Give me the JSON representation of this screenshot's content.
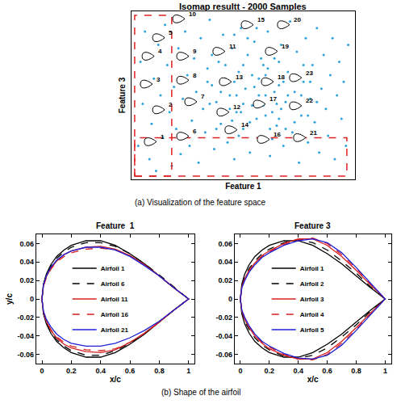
{
  "chart_data": [
    {
      "type": "scatter",
      "title": "Isomap resultt - 2000 Samples",
      "x_label": "Feature 1",
      "y_label": "Feature 3",
      "caption": "(a) Visualization of the feature space",
      "xlim": [
        0,
        100
      ],
      "ylim": [
        0,
        100
      ],
      "tick_labels": false,
      "grid": false,
      "series": [
        {
          "color": "#2aa3dc",
          "marker": "circle",
          "x": [
            3,
            5,
            4,
            6,
            8,
            9,
            10,
            12,
            11,
            13,
            14,
            15,
            16,
            17,
            18,
            19,
            20,
            21,
            22,
            23,
            24,
            25,
            26,
            27,
            28,
            29,
            30,
            31,
            32,
            33,
            34,
            35,
            36,
            37,
            38,
            39,
            40,
            41,
            42,
            43,
            44,
            45,
            46,
            47,
            48,
            49,
            50,
            51,
            52,
            53,
            54,
            55,
            56,
            57,
            58,
            59,
            60,
            61,
            62,
            63,
            64,
            65,
            66,
            67,
            68,
            69,
            70,
            71,
            72,
            73,
            74,
            75,
            76,
            77,
            78,
            79,
            80,
            81,
            82,
            83,
            84,
            85,
            86,
            87,
            88,
            89,
            90,
            91,
            92,
            93,
            94,
            95,
            96,
            97,
            35,
            45,
            55,
            65,
            50,
            60,
            40,
            48,
            58,
            68,
            42,
            52,
            62,
            72,
            46,
            56,
            66,
            76,
            38,
            44,
            54,
            64,
            74,
            34,
            50,
            60,
            70,
            80,
            36,
            46,
            56,
            66,
            53,
            63,
            73,
            83,
            57,
            67,
            47,
            77,
            43,
            49,
            59,
            69,
            79,
            61
          ],
          "values": [
            20,
            45,
            70,
            88,
            12,
            33,
            60,
            80,
            5,
            50,
            25,
            92,
            68,
            40,
            8,
            55,
            30,
            78,
            15,
            48,
            88,
            62,
            20,
            35,
            72,
            52,
            10,
            84,
            42,
            28,
            66,
            95,
            56,
            18,
            46,
            70,
            33,
            86,
            60,
            22,
            50,
            78,
            12,
            40,
            64,
            90,
            30,
            54,
            74,
            16,
            44,
            82,
            36,
            60,
            24,
            68,
            50,
            88,
            14,
            40,
            72,
            32,
            56,
            80,
            20,
            46,
            64,
            94,
            28,
            52,
            76,
            10,
            38,
            58,
            84,
            22,
            48,
            68,
            34,
            90,
            16,
            54,
            74,
            42,
            26,
            62,
            84,
            12,
            50,
            70,
            36,
            58,
            20,
            80,
            45,
            35,
            55,
            45,
            45,
            38,
            52,
            26,
            72,
            58,
            68,
            84,
            30,
            42,
            58,
            46,
            36,
            50,
            30,
            42,
            62,
            52,
            62,
            58,
            68,
            62,
            50,
            58,
            74,
            86,
            90,
            70,
            34,
            24,
            34,
            46,
            50,
            42,
            50,
            68,
            58,
            40,
            44,
            30,
            38,
            66
          ]
        }
      ],
      "annotations": [
        {
          "text": "1",
          "x": 7.9,
          "y": 22.4
        },
        {
          "text": "2",
          "x": 11.6,
          "y": 41.4
        },
        {
          "text": "3",
          "x": 6.1,
          "y": 56.7
        },
        {
          "text": "4",
          "x": 6.9,
          "y": 73.3
        },
        {
          "text": "5",
          "x": 11.6,
          "y": 84.3
        },
        {
          "text": "6",
          "x": 22.4,
          "y": 25.7
        },
        {
          "text": "7",
          "x": 26.0,
          "y": 46.2
        },
        {
          "text": "8",
          "x": 22.4,
          "y": 59.0
        },
        {
          "text": "9",
          "x": 22.4,
          "y": 73.3
        },
        {
          "text": "10",
          "x": 20.6,
          "y": 95.5
        },
        {
          "text": "11",
          "x": 38.6,
          "y": 76.2
        },
        {
          "text": "12",
          "x": 40.4,
          "y": 40.0
        },
        {
          "text": "13",
          "x": 41.5,
          "y": 58.1
        },
        {
          "text": "14",
          "x": 44.0,
          "y": 29.5
        },
        {
          "text": "15",
          "x": 51.3,
          "y": 92.0
        },
        {
          "text": "16",
          "x": 58.5,
          "y": 23.8
        },
        {
          "text": "17",
          "x": 56.7,
          "y": 44.8
        },
        {
          "text": "18",
          "x": 60.3,
          "y": 58.1
        },
        {
          "text": "19",
          "x": 62.1,
          "y": 76.2
        },
        {
          "text": "20",
          "x": 67.5,
          "y": 92.0
        },
        {
          "text": "21",
          "x": 74.7,
          "y": 24.8
        },
        {
          "text": "22",
          "x": 72.9,
          "y": 43.8
        },
        {
          "text": "23",
          "x": 72.9,
          "y": 60.5
        }
      ],
      "regions": [
        {
          "x": [
            1.4,
            18
          ],
          "y": [
            1.9,
            97.6
          ],
          "color": "#e02020",
          "line_style": "dash"
        },
        {
          "x": [
            1.4,
            96.4
          ],
          "y": [
            1.9,
            24.8
          ],
          "color": "#e02020",
          "line_style": "dash"
        }
      ]
    },
    {
      "type": "line",
      "title": "Feature  1",
      "x_label": "x/c",
      "y_label": "y/c",
      "caption": "(b) Shape of the airfoil",
      "xlim": [
        -0.04,
        1.04
      ],
      "ylim": [
        -0.07,
        0.07
      ],
      "xticks": [
        0,
        0.2,
        0.4,
        0.6,
        0.8,
        1
      ],
      "yticks": [
        -0.06,
        -0.04,
        -0.02,
        0,
        0.02,
        0.04,
        0.06
      ],
      "grid": false,
      "legend": "center",
      "x": [
        0,
        0.01,
        0.03,
        0.06,
        0.1,
        0.15,
        0.2,
        0.3,
        0.4,
        0.5,
        0.6,
        0.7,
        0.8,
        0.9,
        1
      ],
      "series": [
        {
          "name": "Airfoil 1",
          "color": "#000000",
          "line_style": "solid",
          "upper": [
            0,
            0.016,
            0.027,
            0.037,
            0.046,
            0.053,
            0.058,
            0.063,
            0.063,
            0.058,
            0.049,
            0.038,
            0.025,
            0.012,
            0
          ],
          "lower": [
            0,
            -0.016,
            -0.027,
            -0.037,
            -0.046,
            -0.053,
            -0.058,
            -0.063,
            -0.063,
            -0.058,
            -0.049,
            -0.038,
            -0.025,
            -0.012,
            0
          ]
        },
        {
          "name": "Airfoil 6",
          "color": "#000000",
          "line_style": "dash",
          "upper": [
            0,
            0.015,
            0.026,
            0.035,
            0.044,
            0.051,
            0.056,
            0.061,
            0.061,
            0.057,
            0.049,
            0.038,
            0.026,
            0.013,
            0
          ],
          "lower": [
            0,
            -0.015,
            -0.026,
            -0.035,
            -0.044,
            -0.051,
            -0.056,
            -0.061,
            -0.061,
            -0.056,
            -0.048,
            -0.037,
            -0.025,
            -0.012,
            0
          ]
        },
        {
          "name": "Airfoil 11",
          "color": "#d62020",
          "line_style": "solid",
          "upper": [
            0,
            0.014,
            0.024,
            0.033,
            0.041,
            0.048,
            0.052,
            0.056,
            0.057,
            0.054,
            0.047,
            0.037,
            0.025,
            0.012,
            0
          ],
          "lower": [
            0,
            -0.014,
            -0.024,
            -0.034,
            -0.042,
            -0.049,
            -0.053,
            -0.057,
            -0.058,
            -0.055,
            -0.047,
            -0.037,
            -0.025,
            -0.012,
            0
          ]
        },
        {
          "name": "Airfoil 16",
          "color": "#d62020",
          "line_style": "dash",
          "upper": [
            0,
            0.014,
            0.023,
            0.032,
            0.04,
            0.046,
            0.05,
            0.054,
            0.055,
            0.053,
            0.047,
            0.037,
            0.025,
            0.012,
            0
          ],
          "lower": [
            0,
            -0.014,
            -0.024,
            -0.033,
            -0.041,
            -0.047,
            -0.051,
            -0.055,
            -0.056,
            -0.054,
            -0.047,
            -0.037,
            -0.025,
            -0.012,
            0
          ]
        },
        {
          "name": "Airfoil 21",
          "color": "#2020d6",
          "line_style": "solid",
          "upper": [
            0,
            0.015,
            0.025,
            0.034,
            0.042,
            0.048,
            0.052,
            0.056,
            0.056,
            0.053,
            0.046,
            0.036,
            0.025,
            0.012,
            0
          ],
          "lower": [
            0,
            -0.013,
            -0.022,
            -0.03,
            -0.038,
            -0.044,
            -0.048,
            -0.051,
            -0.051,
            -0.048,
            -0.042,
            -0.034,
            -0.024,
            -0.012,
            0
          ]
        }
      ]
    },
    {
      "type": "line",
      "title": "Feature 3",
      "x_label": "x/c",
      "xlim": [
        -0.04,
        1.04
      ],
      "ylim": [
        -0.07,
        0.07
      ],
      "xticks": [
        0,
        0.2,
        0.4,
        0.6,
        0.8,
        1
      ],
      "yticks": [
        -0.06,
        -0.04,
        -0.02,
        0,
        0.02,
        0.04,
        0.06
      ],
      "grid": false,
      "legend": "center",
      "x": [
        0,
        0.01,
        0.03,
        0.06,
        0.1,
        0.15,
        0.2,
        0.3,
        0.4,
        0.5,
        0.6,
        0.7,
        0.8,
        0.9,
        1
      ],
      "series": [
        {
          "name": "Airfoil 1",
          "color": "#000000",
          "line_style": "solid",
          "upper": [
            0,
            0.016,
            0.027,
            0.037,
            0.046,
            0.053,
            0.058,
            0.063,
            0.063,
            0.058,
            0.049,
            0.038,
            0.025,
            0.012,
            0
          ],
          "lower": [
            0,
            -0.016,
            -0.027,
            -0.037,
            -0.046,
            -0.053,
            -0.058,
            -0.063,
            -0.063,
            -0.058,
            -0.049,
            -0.038,
            -0.025,
            -0.012,
            0
          ]
        },
        {
          "name": "Airfoil 2",
          "color": "#000000",
          "line_style": "dash",
          "upper": [
            0,
            0.014,
            0.024,
            0.033,
            0.041,
            0.049,
            0.054,
            0.061,
            0.064,
            0.061,
            0.053,
            0.041,
            0.028,
            0.013,
            0
          ],
          "lower": [
            0,
            -0.014,
            -0.024,
            -0.033,
            -0.042,
            -0.05,
            -0.055,
            -0.062,
            -0.064,
            -0.061,
            -0.053,
            -0.041,
            -0.028,
            -0.013,
            0
          ]
        },
        {
          "name": "Airfoil 3",
          "color": "#d62020",
          "line_style": "solid",
          "upper": [
            0,
            0.013,
            0.022,
            0.031,
            0.039,
            0.047,
            0.052,
            0.06,
            0.065,
            0.065,
            0.058,
            0.046,
            0.031,
            0.015,
            0
          ],
          "lower": [
            0,
            -0.013,
            -0.022,
            -0.031,
            -0.04,
            -0.048,
            -0.054,
            -0.061,
            -0.065,
            -0.065,
            -0.058,
            -0.046,
            -0.031,
            -0.015,
            0
          ]
        },
        {
          "name": "Airfoil 4",
          "color": "#d62020",
          "line_style": "dash",
          "upper": [
            0,
            0.012,
            0.021,
            0.03,
            0.038,
            0.046,
            0.051,
            0.059,
            0.064,
            0.066,
            0.06,
            0.048,
            0.033,
            0.016,
            0
          ],
          "lower": [
            0,
            -0.012,
            -0.021,
            -0.03,
            -0.039,
            -0.047,
            -0.052,
            -0.06,
            -0.065,
            -0.066,
            -0.06,
            -0.048,
            -0.033,
            -0.016,
            0
          ]
        },
        {
          "name": "Airfoil 5",
          "color": "#2020d6",
          "line_style": "solid",
          "upper": [
            0,
            0.012,
            0.02,
            0.029,
            0.037,
            0.045,
            0.05,
            0.058,
            0.063,
            0.065,
            0.061,
            0.05,
            0.034,
            0.017,
            0
          ],
          "lower": [
            0,
            -0.012,
            -0.02,
            -0.029,
            -0.038,
            -0.046,
            -0.051,
            -0.059,
            -0.064,
            -0.065,
            -0.061,
            -0.05,
            -0.034,
            -0.017,
            0
          ]
        }
      ]
    }
  ]
}
